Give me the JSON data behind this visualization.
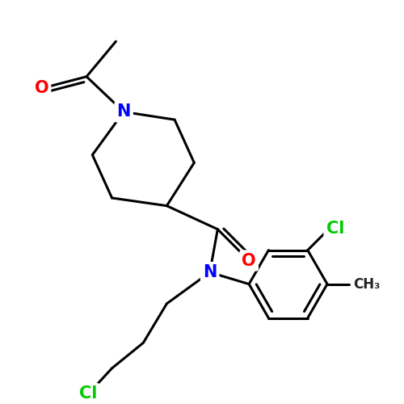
{
  "background_color": "#ffffff",
  "bond_color": "#000000",
  "bond_width": 2.2,
  "atom_colors": {
    "O": "#ff0000",
    "N": "#0000ff",
    "Cl": "#00cc00",
    "C": "#000000"
  },
  "font_size_atom": 15,
  "font_size_small": 12,
  "title": ""
}
